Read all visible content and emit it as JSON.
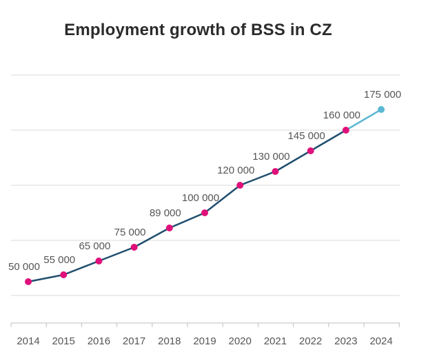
{
  "chart_data": {
    "type": "line",
    "title": "Employment growth of BSS in CZ",
    "xlabel": "",
    "ylabel": "",
    "categories": [
      "2014",
      "2015",
      "2016",
      "2017",
      "2018",
      "2019",
      "2020",
      "2021",
      "2022",
      "2023",
      "2024"
    ],
    "series": [
      {
        "values": [
          50000,
          55000,
          65000,
          75000,
          89000,
          100000,
          120000,
          130000,
          145000,
          160000,
          175000
        ],
        "labels": [
          "50 000",
          "55 000",
          "65 000",
          "75 000",
          "89 000",
          "100 000",
          "120 000",
          "130 000",
          "145 000",
          "160 000",
          "175 000"
        ]
      }
    ],
    "ylim": [
      20000,
      200000
    ],
    "gridlines": [
      40000,
      80000,
      120000,
      160000,
      200000
    ],
    "grid": true,
    "legend": "none",
    "colors": {
      "line": "#1f4e6e",
      "forecast_line": "#5bb8d3",
      "marker": "#e0107a",
      "forecast_marker": "#5bb8d3",
      "grid": "#d9d9d9",
      "axis": "#bfbfbf"
    }
  }
}
